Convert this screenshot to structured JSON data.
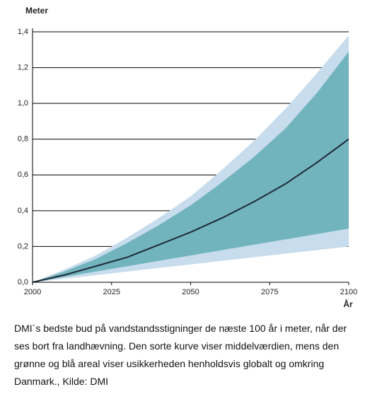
{
  "chart_data": {
    "type": "band",
    "ylabel": "Meter",
    "xlabel": "År",
    "x": [
      2000,
      2010,
      2020,
      2030,
      2040,
      2050,
      2060,
      2070,
      2080,
      2090,
      2100
    ],
    "bands": [
      {
        "color": "#c7dcec",
        "lower": [
          0,
          0.02,
          0.04,
          0.06,
          0.08,
          0.1,
          0.12,
          0.14,
          0.16,
          0.18,
          0.2
        ],
        "upper": [
          0,
          0.07,
          0.15,
          0.25,
          0.36,
          0.48,
          0.63,
          0.79,
          0.97,
          1.17,
          1.38
        ]
      },
      {
        "color": "#72b4be",
        "lower": [
          0,
          0.03,
          0.06,
          0.09,
          0.12,
          0.15,
          0.18,
          0.21,
          0.24,
          0.27,
          0.3
        ],
        "upper": [
          0,
          0.06,
          0.13,
          0.22,
          0.32,
          0.43,
          0.56,
          0.7,
          0.86,
          1.06,
          1.29
        ]
      }
    ],
    "line": {
      "color": "#1e2a36",
      "values": [
        0,
        0.04,
        0.09,
        0.14,
        0.21,
        0.28,
        0.36,
        0.45,
        0.55,
        0.67,
        0.8
      ]
    },
    "xlim": [
      2000,
      2100
    ],
    "xticks": [
      2000,
      2025,
      2050,
      2075,
      2100
    ],
    "ylim": [
      0,
      1.4
    ],
    "yticks": [
      {
        "value": 0,
        "label": "0,0"
      },
      {
        "value": 0.2,
        "label": "0,2"
      },
      {
        "value": 0.4,
        "label": "0,4"
      },
      {
        "value": 0.6,
        "label": "0,6"
      },
      {
        "value": 0.8,
        "label": "0,8"
      },
      {
        "value": 1.0,
        "label": "1,0"
      },
      {
        "value": 1.2,
        "label": "1,2"
      },
      {
        "value": 1.4,
        "label": "1,4"
      }
    ],
    "grid": true
  },
  "caption": "DMI´s bedste bud på vandstandsstigninger de næste 100 år i meter, når der ses bort fra landhævning. Den sorte kurve viser middelværdien, mens den grønne og blå areal viser usikkerheden henholdsvis globalt og omkring Danmark., Kilde: DMI"
}
